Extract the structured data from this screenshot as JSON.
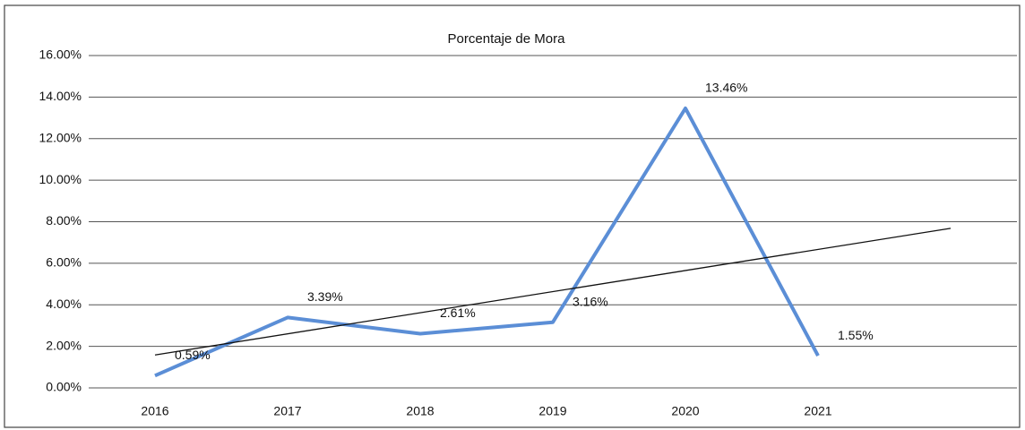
{
  "chart_data": {
    "type": "line",
    "title": "Porcentaje de Mora",
    "categories": [
      "2016",
      "2017",
      "2018",
      "2019",
      "2020",
      "2021"
    ],
    "series": [
      {
        "name": "Porcentaje de Mora",
        "color": "#5b8ed6",
        "values": [
          0.59,
          3.39,
          2.61,
          3.16,
          13.46,
          1.55
        ],
        "value_labels": [
          "0.59%",
          "3.39%",
          "2.61%",
          "3.16%",
          "13.46%",
          "1.55%"
        ]
      }
    ],
    "ylim": [
      0,
      16
    ],
    "yticks": [
      {
        "value": 0,
        "label": "0.00%"
      },
      {
        "value": 2,
        "label": "2.00%"
      },
      {
        "value": 4,
        "label": "4.00%"
      },
      {
        "value": 6,
        "label": "6.00%"
      },
      {
        "value": 8,
        "label": "8.00%"
      },
      {
        "value": 10,
        "label": "10.00%"
      },
      {
        "value": 12,
        "label": "12.00%"
      },
      {
        "value": 14,
        "label": "14.00%"
      },
      {
        "value": 16,
        "label": "16.00%"
      }
    ],
    "grid": true,
    "trendline": {
      "type": "linear",
      "forward": 1,
      "color": "#111111"
    }
  }
}
